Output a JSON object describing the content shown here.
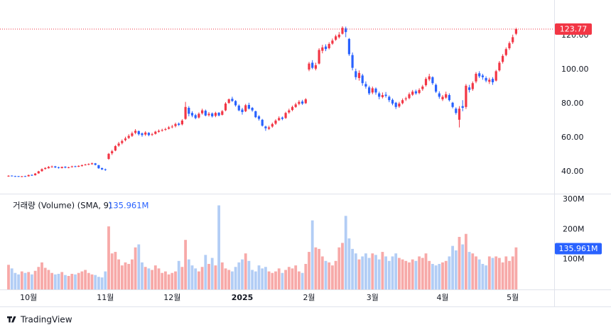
{
  "chart_data": {
    "type": "candlestick",
    "categories": [
      null,
      null,
      null,
      null,
      null,
      null,
      "10월",
      null,
      null,
      null,
      null,
      null,
      null,
      null,
      null,
      null,
      null,
      null,
      null,
      null,
      null,
      null,
      null,
      null,
      null,
      null,
      null,
      null,
      null,
      "11월",
      null,
      null,
      null,
      null,
      null,
      null,
      null,
      null,
      null,
      null,
      null,
      null,
      null,
      null,
      null,
      null,
      null,
      null,
      null,
      "12월",
      null,
      null,
      null,
      null,
      null,
      null,
      null,
      null,
      null,
      null,
      null,
      null,
      null,
      null,
      null,
      null,
      null,
      null,
      null,
      null,
      "2025",
      null,
      null,
      null,
      null,
      null,
      null,
      null,
      null,
      null,
      null,
      null,
      null,
      null,
      null,
      null,
      null,
      null,
      null,
      null,
      "2월",
      null,
      null,
      null,
      null,
      null,
      null,
      null,
      null,
      null,
      null,
      null,
      null,
      null,
      null,
      null,
      null,
      null,
      null,
      "3월",
      null,
      null,
      null,
      null,
      null,
      null,
      null,
      null,
      null,
      null,
      null,
      null,
      null,
      null,
      null,
      null,
      null,
      null,
      null,
      null,
      "4월",
      null,
      null,
      null,
      null,
      null,
      null,
      null,
      null,
      null,
      null,
      null,
      null,
      null,
      null,
      null,
      null,
      null,
      null,
      null,
      null,
      "5월",
      null
    ],
    "series": [
      {
        "up_color": "#f23645",
        "down_color": "#2962ff",
        "ohlc": [
          [
            37.2,
            37.9,
            37.0,
            37.6
          ],
          [
            37.7,
            37.8,
            37.2,
            37.4
          ],
          [
            37.4,
            37.6,
            37.0,
            37.3
          ],
          [
            37.4,
            37.5,
            36.9,
            37.1
          ],
          [
            37.0,
            37.5,
            36.8,
            37.3
          ],
          [
            37.4,
            37.6,
            37.0,
            37.2
          ],
          [
            37.3,
            38.3,
            37.1,
            38.0
          ],
          [
            38.1,
            38.4,
            37.5,
            37.8
          ],
          [
            37.9,
            39.2,
            37.7,
            38.9
          ],
          [
            39.0,
            40.5,
            38.8,
            40.2
          ],
          [
            40.3,
            41.9,
            40.0,
            41.5
          ],
          [
            41.6,
            42.6,
            41.2,
            42.2
          ],
          [
            42.0,
            43.3,
            41.8,
            42.8
          ],
          [
            42.9,
            43.6,
            42.4,
            43.0
          ],
          [
            43.1,
            43.4,
            42.1,
            42.5
          ],
          [
            42.6,
            42.9,
            41.8,
            42.2
          ],
          [
            42.1,
            43.0,
            41.9,
            42.8
          ],
          [
            42.9,
            43.2,
            42.0,
            42.4
          ],
          [
            42.3,
            42.9,
            42.0,
            42.6
          ],
          [
            42.7,
            43.5,
            42.4,
            43.1
          ],
          [
            43.2,
            43.5,
            42.6,
            42.9
          ],
          [
            42.9,
            43.7,
            42.7,
            43.4
          ],
          [
            43.3,
            44.2,
            43.0,
            43.8
          ],
          [
            43.9,
            44.6,
            43.6,
            44.2
          ],
          [
            44.1,
            44.9,
            43.8,
            44.5
          ],
          [
            44.4,
            45.3,
            44.1,
            44.9
          ],
          [
            44.9,
            45.1,
            43.7,
            44.0
          ],
          [
            43.8,
            44.0,
            41.7,
            42.0
          ],
          [
            42.1,
            42.4,
            41.0,
            41.3
          ],
          [
            41.4,
            41.8,
            40.5,
            41.0
          ],
          [
            47.5,
            51.0,
            47.0,
            50.5
          ],
          [
            50.8,
            52.8,
            49.8,
            52.0
          ],
          [
            52.4,
            55.6,
            52.0,
            55.0
          ],
          [
            55.3,
            57.5,
            54.6,
            56.5
          ],
          [
            56.8,
            58.9,
            56.0,
            58.0
          ],
          [
            58.5,
            60.5,
            57.8,
            59.5
          ],
          [
            59.8,
            62.0,
            59.2,
            61.0
          ],
          [
            61.0,
            63.5,
            60.4,
            62.5
          ],
          [
            62.8,
            65.0,
            62.0,
            64.0
          ],
          [
            63.8,
            64.2,
            61.2,
            62.0
          ],
          [
            62.5,
            63.0,
            60.5,
            61.5
          ],
          [
            61.8,
            63.8,
            61.0,
            63.0
          ],
          [
            62.8,
            63.2,
            60.8,
            61.5
          ],
          [
            61.6,
            62.8,
            61.0,
            62.0
          ],
          [
            62.2,
            64.0,
            61.8,
            63.5
          ],
          [
            63.4,
            64.8,
            62.9,
            64.0
          ],
          [
            64.2,
            65.2,
            63.5,
            64.5
          ],
          [
            64.6,
            65.8,
            64.0,
            65.0
          ],
          [
            65.2,
            66.8,
            64.8,
            66.0
          ],
          [
            66.2,
            67.5,
            65.5,
            66.5
          ],
          [
            66.8,
            68.8,
            66.0,
            68.0
          ],
          [
            68.2,
            68.9,
            66.8,
            67.5
          ],
          [
            67.8,
            70.8,
            67.2,
            70.0
          ],
          [
            71.0,
            81.0,
            70.5,
            78.0
          ],
          [
            77.5,
            78.5,
            72.5,
            74.0
          ],
          [
            74.5,
            75.5,
            72.0,
            73.0
          ],
          [
            73.2,
            74.0,
            70.8,
            71.5
          ],
          [
            71.8,
            74.8,
            71.2,
            74.0
          ],
          [
            74.3,
            77.0,
            73.5,
            76.0
          ],
          [
            75.8,
            76.5,
            72.5,
            73.0
          ],
          [
            73.2,
            75.0,
            72.4,
            74.0
          ],
          [
            74.2,
            74.8,
            71.8,
            72.5
          ],
          [
            72.8,
            75.2,
            72.0,
            74.5
          ],
          [
            74.6,
            75.0,
            72.5,
            73.0
          ],
          [
            73.4,
            76.2,
            73.0,
            75.5
          ],
          [
            76.0,
            80.8,
            75.5,
            80.0
          ],
          [
            80.4,
            83.0,
            79.8,
            82.5
          ],
          [
            82.8,
            84.0,
            81.0,
            81.5
          ],
          [
            81.5,
            82.0,
            78.2,
            79.0
          ],
          [
            78.8,
            79.5,
            75.5,
            76.0
          ],
          [
            76.5,
            77.5,
            73.5,
            75.0
          ],
          [
            75.5,
            79.8,
            75.0,
            79.0
          ],
          [
            79.2,
            80.5,
            76.5,
            77.0
          ],
          [
            77.5,
            78.0,
            75.2,
            76.0
          ],
          [
            75.5,
            75.8,
            71.5,
            72.0
          ],
          [
            72.5,
            73.2,
            70.0,
            71.0
          ],
          [
            70.5,
            71.0,
            66.5,
            67.0
          ],
          [
            66.5,
            67.0,
            64.0,
            65.5
          ],
          [
            65.2,
            67.0,
            64.5,
            66.0
          ],
          [
            66.5,
            68.8,
            65.8,
            68.0
          ],
          [
            68.2,
            70.8,
            67.5,
            70.0
          ],
          [
            70.2,
            72.5,
            69.8,
            71.5
          ],
          [
            71.8,
            72.4,
            70.2,
            71.0
          ],
          [
            71.5,
            75.2,
            71.0,
            74.5
          ],
          [
            74.8,
            77.0,
            74.0,
            76.0
          ],
          [
            76.2,
            78.8,
            75.5,
            78.0
          ],
          [
            78.0,
            80.5,
            77.5,
            79.5
          ],
          [
            79.8,
            82.0,
            79.0,
            81.0
          ],
          [
            81.2,
            82.2,
            79.2,
            80.0
          ],
          [
            80.2,
            83.2,
            79.8,
            82.5
          ],
          [
            100.0,
            104.5,
            99.0,
            103.5
          ],
          [
            104.0,
            105.5,
            100.2,
            101.0
          ],
          [
            100.5,
            104.0,
            99.5,
            102.5
          ],
          [
            103.5,
            112.5,
            103.0,
            111.5
          ],
          [
            111.0,
            114.5,
            109.5,
            113.0
          ],
          [
            113.5,
            114.8,
            110.8,
            112.0
          ],
          [
            112.5,
            116.0,
            111.8,
            115.0
          ],
          [
            115.2,
            118.2,
            114.5,
            117.0
          ],
          [
            117.5,
            120.5,
            116.8,
            119.5
          ],
          [
            119.0,
            122.0,
            118.2,
            120.5
          ],
          [
            121.0,
            125.4,
            120.5,
            124.5
          ],
          [
            124.2,
            125.2,
            119.0,
            122.0
          ],
          [
            118.0,
            118.5,
            108.0,
            109.0
          ],
          [
            108.5,
            110.0,
            99.5,
            101.0
          ],
          [
            99.0,
            100.5,
            94.0,
            95.5
          ],
          [
            95.0,
            99.5,
            93.5,
            98.0
          ],
          [
            96.5,
            97.5,
            90.5,
            92.0
          ],
          [
            91.5,
            93.0,
            88.8,
            90.0
          ],
          [
            89.5,
            90.5,
            85.0,
            86.0
          ],
          [
            86.5,
            90.0,
            85.5,
            89.0
          ],
          [
            88.8,
            89.5,
            85.2,
            86.5
          ],
          [
            86.0,
            87.0,
            82.5,
            84.0
          ],
          [
            83.8,
            86.5,
            83.0,
            85.0
          ],
          [
            85.2,
            86.8,
            83.5,
            84.5
          ],
          [
            84.0,
            84.8,
            80.8,
            82.0
          ],
          [
            82.2,
            83.0,
            79.0,
            80.0
          ],
          [
            80.5,
            81.0,
            76.8,
            78.0
          ],
          [
            78.3,
            81.0,
            77.5,
            80.0
          ],
          [
            80.2,
            83.0,
            79.5,
            82.0
          ],
          [
            82.5,
            84.0,
            81.5,
            83.0
          ],
          [
            83.2,
            86.5,
            82.5,
            85.5
          ],
          [
            85.2,
            88.0,
            84.5,
            87.0
          ],
          [
            87.2,
            88.2,
            85.2,
            86.0
          ],
          [
            86.2,
            89.0,
            85.5,
            88.0
          ],
          [
            88.5,
            91.0,
            87.5,
            90.0
          ],
          [
            90.8,
            95.5,
            90.0,
            94.5
          ],
          [
            94.2,
            97.5,
            93.2,
            96.0
          ],
          [
            95.5,
            96.0,
            91.0,
            92.0
          ],
          [
            91.0,
            91.8,
            86.2,
            87.0
          ],
          [
            86.0,
            87.2,
            82.8,
            84.0
          ],
          [
            82.5,
            85.0,
            81.5,
            84.0
          ],
          [
            83.5,
            87.0,
            82.8,
            85.5
          ],
          [
            85.0,
            86.0,
            81.2,
            82.0
          ],
          [
            80.5,
            81.0,
            77.2,
            78.0
          ],
          [
            77.0,
            77.8,
            73.5,
            74.5
          ],
          [
            70.5,
            78.5,
            66.0,
            77.0
          ],
          [
            78.5,
            82.0,
            75.5,
            77.5
          ],
          [
            78.0,
            91.5,
            76.8,
            90.5
          ],
          [
            89.5,
            91.0,
            86.5,
            88.0
          ],
          [
            88.5,
            93.0,
            87.5,
            92.0
          ],
          [
            93.0,
            98.5,
            92.0,
            97.5
          ],
          [
            97.8,
            99.0,
            95.0,
            96.0
          ],
          [
            96.5,
            97.5,
            94.0,
            95.5
          ],
          [
            95.0,
            96.0,
            92.5,
            93.5
          ],
          [
            92.8,
            95.2,
            91.5,
            94.0
          ],
          [
            94.5,
            95.5,
            91.0,
            92.5
          ],
          [
            93.5,
            99.8,
            93.0,
            99.0
          ],
          [
            99.5,
            105.0,
            98.8,
            104.0
          ],
          [
            104.5,
            109.0,
            103.5,
            108.0
          ],
          [
            108.5,
            113.0,
            107.8,
            112.0
          ],
          [
            112.5,
            116.5,
            111.5,
            115.5
          ],
          [
            116.0,
            120.5,
            115.0,
            119.0
          ],
          [
            121.0,
            124.5,
            120.2,
            123.77
          ]
        ]
      }
    ],
    "ylim": [
      27.08,
      136.67
    ],
    "yticks": [
      {
        "value": 40,
        "label": "40.00"
      },
      {
        "value": 60,
        "label": "60.00"
      },
      {
        "value": 80,
        "label": "80.00"
      },
      {
        "value": 100,
        "label": "100.00"
      },
      {
        "value": 120,
        "label": "120.00"
      }
    ],
    "last_price": 123.77,
    "volume": {
      "label": "거래량 (Volume) (SMA, 9)",
      "sma": {
        "value": 135.961,
        "label": "135.961M"
      },
      "up_color": "#f7a9a8",
      "down_color": "#b2cdf5",
      "sma_color": "#2962ff",
      "ylim": [
        0,
        319
      ],
      "yticks": [
        {
          "value": 100,
          "label": "100M"
        },
        {
          "value": 200,
          "label": "200M"
        },
        {
          "value": 300,
          "label": "300M"
        }
      ],
      "values": [
        82,
        70,
        55,
        50,
        60,
        55,
        58,
        50,
        62,
        75,
        90,
        72,
        65,
        55,
        50,
        52,
        58,
        48,
        45,
        52,
        50,
        55,
        60,
        65,
        55,
        50,
        48,
        42,
        40,
        60,
        210,
        120,
        125,
        100,
        80,
        90,
        85,
        100,
        140,
        150,
        90,
        75,
        70,
        65,
        80,
        70,
        55,
        60,
        50,
        55,
        60,
        95,
        75,
        165,
        100,
        80,
        70,
        60,
        75,
        115,
        85,
        105,
        80,
        280,
        90,
        70,
        65,
        60,
        75,
        90,
        100,
        120,
        95,
        65,
        60,
        80,
        70,
        75,
        60,
        55,
        60,
        70,
        55,
        65,
        75,
        70,
        80,
        60,
        55,
        85,
        125,
        230,
        140,
        135,
        110,
        95,
        90,
        80,
        95,
        140,
        155,
        245,
        170,
        135,
        120,
        100,
        110,
        120,
        105,
        120,
        115,
        100,
        125,
        110,
        95,
        110,
        120,
        105,
        100,
        95,
        90,
        100,
        95,
        110,
        105,
        120,
        95,
        85,
        80,
        85,
        90,
        95,
        110,
        145,
        130,
        175,
        150,
        185,
        125,
        120,
        110,
        100,
        85,
        80,
        110,
        105,
        110,
        105,
        90,
        110,
        95,
        110,
        140
      ]
    },
    "brand": "TradingView"
  }
}
